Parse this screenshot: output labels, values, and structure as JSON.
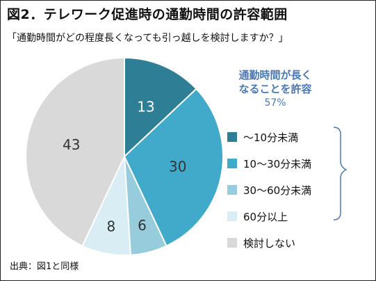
{
  "title": "図2．テレワーク促進時の通勤時間の許容範囲",
  "subtitle": "「通勤時間がどの程度長くなっても引っ越しを検討しますか？」",
  "source_note": "出典：図1と同様",
  "group_annotation": {
    "line1": "通勤時間が長く",
    "line2": "なることを許容",
    "percent": "57%",
    "color": "#4a78b5"
  },
  "chart_data": {
    "type": "pie",
    "labels": [
      "～10分未満",
      "10～30分未満",
      "30～60分未満",
      "60分以上",
      "検討しない"
    ],
    "values": [
      13,
      30,
      6,
      8,
      43
    ],
    "value_labels": [
      "13",
      "30",
      "6",
      "8",
      "43"
    ],
    "colors": [
      "#2e7f96",
      "#41aacb",
      "#96ccdc",
      "#d8edf4",
      "#d9d9d9"
    ],
    "label_colors": [
      "#ffffff",
      "#333333",
      "#333333",
      "#333333",
      "#333333"
    ],
    "start_angle_deg": 0,
    "direction": "clockwise",
    "legend_position": "right"
  }
}
